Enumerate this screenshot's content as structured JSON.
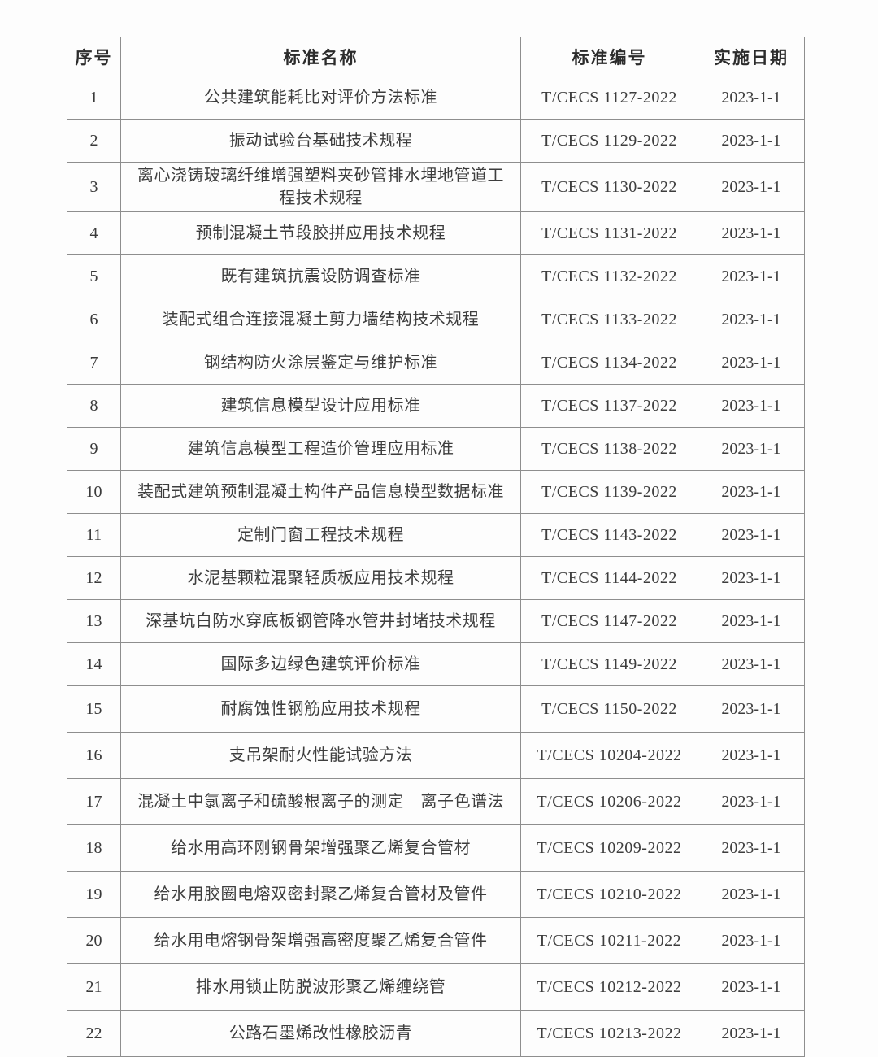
{
  "colors": {
    "page_background": "#fdfdfd",
    "border": "#8e8e8e",
    "text": "#3d3d3d",
    "header_text": "#2c2c2c"
  },
  "table": {
    "columns": [
      "序号",
      "标准名称",
      "标准编号",
      "实施日期"
    ],
    "rows": [
      {
        "no": "1",
        "name": "公共建筑能耗比对评价方法标准",
        "code": "T/CECS 1127-2022",
        "date": "2023-1-1"
      },
      {
        "no": "2",
        "name": "振动试验台基础技术规程",
        "code": "T/CECS 1129-2022",
        "date": "2023-1-1"
      },
      {
        "no": "3",
        "name": "离心浇铸玻璃纤维增强塑料夹砂管排水埋地管道工程技术规程",
        "code": "T/CECS 1130-2022",
        "date": "2023-1-1"
      },
      {
        "no": "4",
        "name": "预制混凝土节段胶拼应用技术规程",
        "code": "T/CECS 1131-2022",
        "date": "2023-1-1"
      },
      {
        "no": "5",
        "name": "既有建筑抗震设防调查标准",
        "code": "T/CECS 1132-2022",
        "date": "2023-1-1"
      },
      {
        "no": "6",
        "name": "装配式组合连接混凝土剪力墙结构技术规程",
        "code": "T/CECS 1133-2022",
        "date": "2023-1-1"
      },
      {
        "no": "7",
        "name": "钢结构防火涂层鉴定与维护标准",
        "code": "T/CECS 1134-2022",
        "date": "2023-1-1"
      },
      {
        "no": "8",
        "name": "建筑信息模型设计应用标准",
        "code": "T/CECS 1137-2022",
        "date": "2023-1-1"
      },
      {
        "no": "9",
        "name": "建筑信息模型工程造价管理应用标准",
        "code": "T/CECS 1138-2022",
        "date": "2023-1-1"
      },
      {
        "no": "10",
        "name": "装配式建筑预制混凝土构件产品信息模型数据标准",
        "code": "T/CECS 1139-2022",
        "date": "2023-1-1"
      },
      {
        "no": "11",
        "name": "定制门窗工程技术规程",
        "code": "T/CECS 1143-2022",
        "date": "2023-1-1"
      },
      {
        "no": "12",
        "name": "水泥基颗粒混聚轻质板应用技术规程",
        "code": "T/CECS 1144-2022",
        "date": "2023-1-1"
      },
      {
        "no": "13",
        "name": "深基坑白防水穿底板钢管降水管井封堵技术规程",
        "code": "T/CECS 1147-2022",
        "date": "2023-1-1"
      },
      {
        "no": "14",
        "name": "国际多边绿色建筑评价标准",
        "code": "T/CECS 1149-2022",
        "date": "2023-1-1"
      },
      {
        "no": "15",
        "name": "耐腐蚀性钢筋应用技术规程",
        "code": "T/CECS 1150-2022",
        "date": "2023-1-1"
      },
      {
        "no": "16",
        "name": "支吊架耐火性能试验方法",
        "code": "T/CECS 10204-2022",
        "date": "2023-1-1"
      },
      {
        "no": "17",
        "name": "混凝土中氯离子和硫酸根离子的测定　离子色谱法",
        "code": "T/CECS 10206-2022",
        "date": "2023-1-1"
      },
      {
        "no": "18",
        "name": "给水用高环刚钢骨架增强聚乙烯复合管材",
        "code": "T/CECS 10209-2022",
        "date": "2023-1-1"
      },
      {
        "no": "19",
        "name": "给水用胶圈电熔双密封聚乙烯复合管材及管件",
        "code": "T/CECS 10210-2022",
        "date": "2023-1-1"
      },
      {
        "no": "20",
        "name": "给水用电熔钢骨架增强高密度聚乙烯复合管件",
        "code": "T/CECS 10211-2022",
        "date": "2023-1-1"
      },
      {
        "no": "21",
        "name": "排水用锁止防脱波形聚乙烯缠绕管",
        "code": "T/CECS 10212-2022",
        "date": "2023-1-1"
      },
      {
        "no": "22",
        "name": "公路石墨烯改性橡胶沥青",
        "code": "T/CECS 10213-2022",
        "date": "2023-1-1"
      }
    ]
  }
}
